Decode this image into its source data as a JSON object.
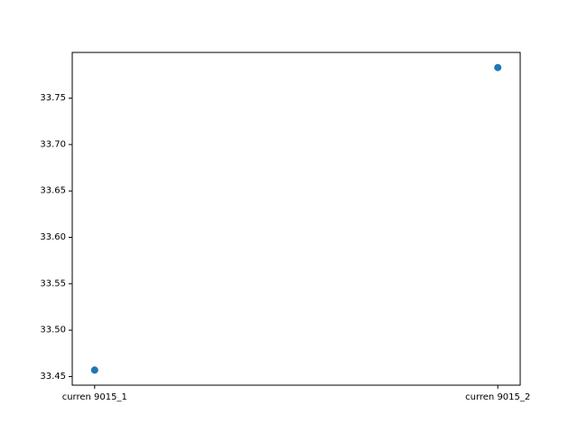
{
  "chart_data": {
    "type": "scatter",
    "title": "",
    "xlabel": "",
    "ylabel": "",
    "categories": [
      "curren 9015_1",
      "curren 9015_2"
    ],
    "series": [
      {
        "values": [
          33.457,
          33.783
        ],
        "color": "#1f77b4"
      }
    ],
    "y_ticks": [
      "33.45",
      "33.50",
      "33.55",
      "33.60",
      "33.65",
      "33.70",
      "33.75"
    ],
    "ylim": [
      33.4407,
      33.7993
    ],
    "grid": false,
    "legend": "none"
  }
}
